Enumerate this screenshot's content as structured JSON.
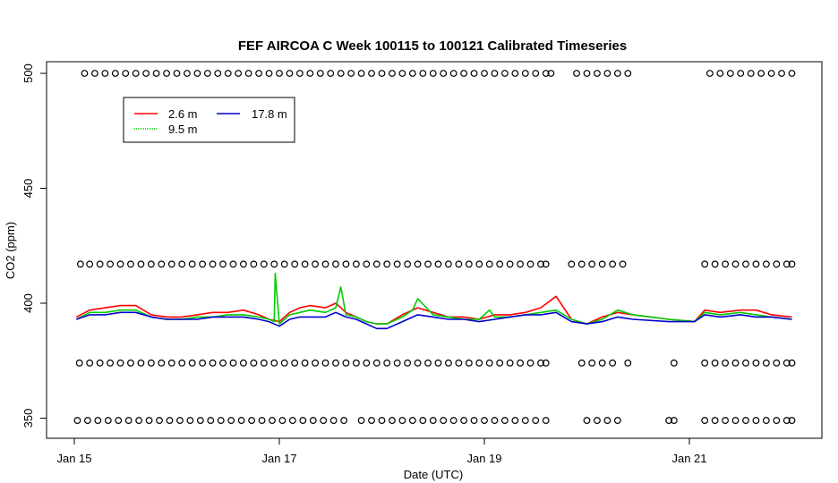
{
  "chart_data": {
    "type": "line",
    "title": "FEF AIRCOA C  Week 100115 to 100121  Calibrated Timeseries",
    "xlabel": "Date (UTC)",
    "ylabel": "CO2 (ppm)",
    "x_ticks": [
      {
        "label": "Jan 15",
        "day": 15
      },
      {
        "label": "Jan 17",
        "day": 17
      },
      {
        "label": "Jan 19",
        "day": 19
      },
      {
        "label": "Jan 21",
        "day": 21
      }
    ],
    "y_ticks": [
      350,
      400,
      450,
      500
    ],
    "xlim_days": [
      15.0,
      22.0
    ],
    "ylim": [
      347,
      507
    ],
    "grid": false,
    "legend_position": "top-left",
    "legend": [
      {
        "name": "2.6 m",
        "color": "#ff0000"
      },
      {
        "name": "9.5 m",
        "color": "#00cc00"
      },
      {
        "name": "17.8 m",
        "color": "#0000cc"
      }
    ],
    "series": [
      {
        "name": "2.6 m",
        "color": "#ff0000",
        "days": [
          15.02,
          15.15,
          15.3,
          15.45,
          15.6,
          15.75,
          15.9,
          16.05,
          16.2,
          16.35,
          16.5,
          16.65,
          16.8,
          16.9,
          17.0,
          17.1,
          17.2,
          17.3,
          17.45,
          17.55,
          17.65,
          17.75,
          17.85,
          17.95,
          18.05,
          18.2,
          18.35,
          18.5,
          18.65,
          18.8,
          18.95,
          19.1,
          19.25,
          19.4,
          19.55,
          19.7,
          19.85,
          20.0,
          20.15,
          20.3,
          20.45,
          20.8,
          21.05,
          21.15,
          21.3,
          21.5,
          21.65,
          21.8,
          22.0
        ],
        "values": [
          394,
          397,
          398,
          399,
          399,
          395,
          394,
          394,
          395,
          396,
          396,
          397,
          395,
          393,
          392,
          396,
          398,
          399,
          398,
          400,
          396,
          394,
          392,
          391,
          391,
          395,
          398,
          396,
          394,
          394,
          393,
          395,
          395,
          396,
          398,
          403,
          393,
          391,
          394,
          396,
          395,
          393,
          392,
          397,
          396,
          397,
          397,
          395,
          394
        ]
      },
      {
        "name": "9.5 m",
        "color": "#00cc00",
        "days": [
          15.02,
          15.15,
          15.3,
          15.45,
          15.6,
          15.75,
          15.9,
          16.05,
          16.2,
          16.35,
          16.5,
          16.65,
          16.8,
          16.9,
          16.95,
          16.96,
          17.0,
          17.1,
          17.2,
          17.3,
          17.45,
          17.55,
          17.6,
          17.65,
          17.75,
          17.85,
          17.95,
          18.05,
          18.2,
          18.3,
          18.35,
          18.5,
          18.65,
          18.8,
          18.95,
          19.05,
          19.1,
          19.25,
          19.4,
          19.55,
          19.7,
          19.85,
          20.0,
          20.15,
          20.3,
          20.45,
          20.8,
          21.05,
          21.15,
          21.3,
          21.5,
          21.65,
          21.8,
          22.0
        ],
        "values": [
          393,
          396,
          396,
          397,
          397,
          394,
          393,
          393,
          394,
          394,
          395,
          395,
          394,
          393,
          392,
          413,
          391,
          395,
          396,
          397,
          396,
          398,
          407,
          395,
          394,
          392,
          391,
          391,
          394,
          397,
          402,
          395,
          394,
          393,
          393,
          397,
          394,
          394,
          395,
          396,
          397,
          393,
          391,
          393,
          397,
          395,
          393,
          392,
          396,
          395,
          396,
          395,
          394,
          393
        ]
      },
      {
        "name": "17.8 m",
        "color": "#0000cc",
        "days": [
          15.02,
          15.15,
          15.3,
          15.45,
          15.6,
          15.75,
          15.9,
          16.05,
          16.2,
          16.35,
          16.5,
          16.65,
          16.8,
          16.9,
          17.0,
          17.1,
          17.2,
          17.3,
          17.45,
          17.55,
          17.65,
          17.75,
          17.85,
          17.95,
          18.05,
          18.2,
          18.35,
          18.5,
          18.65,
          18.8,
          18.95,
          19.1,
          19.25,
          19.4,
          19.55,
          19.7,
          19.85,
          20.0,
          20.15,
          20.3,
          20.45,
          20.8,
          21.05,
          21.15,
          21.3,
          21.5,
          21.65,
          21.8,
          22.0
        ],
        "values": [
          393,
          395,
          395,
          396,
          396,
          394,
          393,
          393,
          393,
          394,
          394,
          394,
          393,
          392,
          390,
          393,
          394,
          394,
          394,
          396,
          394,
          393,
          391,
          389,
          389,
          392,
          395,
          394,
          393,
          393,
          392,
          393,
          394,
          395,
          395,
          396,
          392,
          391,
          392,
          394,
          393,
          392,
          392,
          395,
          394,
          395,
          394,
          394,
          393
        ]
      }
    ],
    "flag_rows": [
      {
        "value": 500,
        "days": [
          15.1,
          15.2,
          15.3,
          15.4,
          15.5,
          15.6,
          15.7,
          15.8,
          15.9,
          16.0,
          16.1,
          16.2,
          16.3,
          16.4,
          16.5,
          16.6,
          16.7,
          16.8,
          16.9,
          17.0,
          17.1,
          17.2,
          17.3,
          17.4,
          17.5,
          17.6,
          17.7,
          17.8,
          17.9,
          18.0,
          18.1,
          18.2,
          18.3,
          18.4,
          18.5,
          18.6,
          18.7,
          18.8,
          18.9,
          19.0,
          19.1,
          19.2,
          19.3,
          19.4,
          19.5,
          19.6,
          19.65,
          19.9,
          20.0,
          20.1,
          20.2,
          20.3,
          20.4,
          21.2,
          21.3,
          21.4,
          21.5,
          21.6,
          21.7,
          21.8,
          21.9,
          22.0
        ]
      },
      {
        "value": 417,
        "days": [
          15.06,
          15.15,
          15.25,
          15.35,
          15.45,
          15.55,
          15.65,
          15.75,
          15.85,
          15.95,
          16.05,
          16.15,
          16.25,
          16.35,
          16.45,
          16.55,
          16.65,
          16.75,
          16.85,
          16.95,
          17.05,
          17.15,
          17.25,
          17.35,
          17.45,
          17.55,
          17.65,
          17.75,
          17.85,
          17.95,
          18.05,
          18.15,
          18.25,
          18.35,
          18.45,
          18.55,
          18.65,
          18.75,
          18.85,
          18.95,
          19.05,
          19.15,
          19.25,
          19.35,
          19.45,
          19.55,
          19.6,
          19.85,
          19.95,
          20.05,
          20.15,
          20.25,
          20.35,
          21.15,
          21.25,
          21.35,
          21.45,
          21.55,
          21.65,
          21.75,
          21.85,
          21.95,
          22.0
        ]
      },
      {
        "value": 374,
        "days": [
          15.05,
          15.15,
          15.25,
          15.35,
          15.45,
          15.55,
          15.65,
          15.75,
          15.85,
          15.95,
          16.05,
          16.15,
          16.25,
          16.35,
          16.45,
          16.55,
          16.65,
          16.75,
          16.85,
          16.95,
          17.05,
          17.15,
          17.25,
          17.35,
          17.45,
          17.55,
          17.65,
          17.75,
          17.85,
          17.95,
          18.05,
          18.15,
          18.25,
          18.35,
          18.45,
          18.55,
          18.65,
          18.75,
          18.85,
          18.95,
          19.05,
          19.15,
          19.25,
          19.35,
          19.45,
          19.55,
          19.6,
          19.95,
          20.05,
          20.15,
          20.25,
          20.4,
          20.85,
          21.15,
          21.25,
          21.35,
          21.45,
          21.55,
          21.65,
          21.75,
          21.85,
          21.95,
          22.0
        ]
      },
      {
        "value": 349,
        "days": [
          15.03,
          15.13,
          15.23,
          15.33,
          15.43,
          15.53,
          15.63,
          15.73,
          15.83,
          15.93,
          16.03,
          16.13,
          16.23,
          16.33,
          16.43,
          16.53,
          16.63,
          16.73,
          16.83,
          16.93,
          17.03,
          17.13,
          17.23,
          17.33,
          17.43,
          17.53,
          17.63,
          17.8,
          17.9,
          18.0,
          18.1,
          18.2,
          18.3,
          18.4,
          18.5,
          18.6,
          18.7,
          18.8,
          18.9,
          19.0,
          19.1,
          19.2,
          19.3,
          19.4,
          19.5,
          19.6,
          20.0,
          20.1,
          20.2,
          20.3,
          20.8,
          20.85,
          21.15,
          21.25,
          21.35,
          21.45,
          21.55,
          21.65,
          21.75,
          21.85,
          21.95,
          22.0
        ]
      }
    ]
  }
}
